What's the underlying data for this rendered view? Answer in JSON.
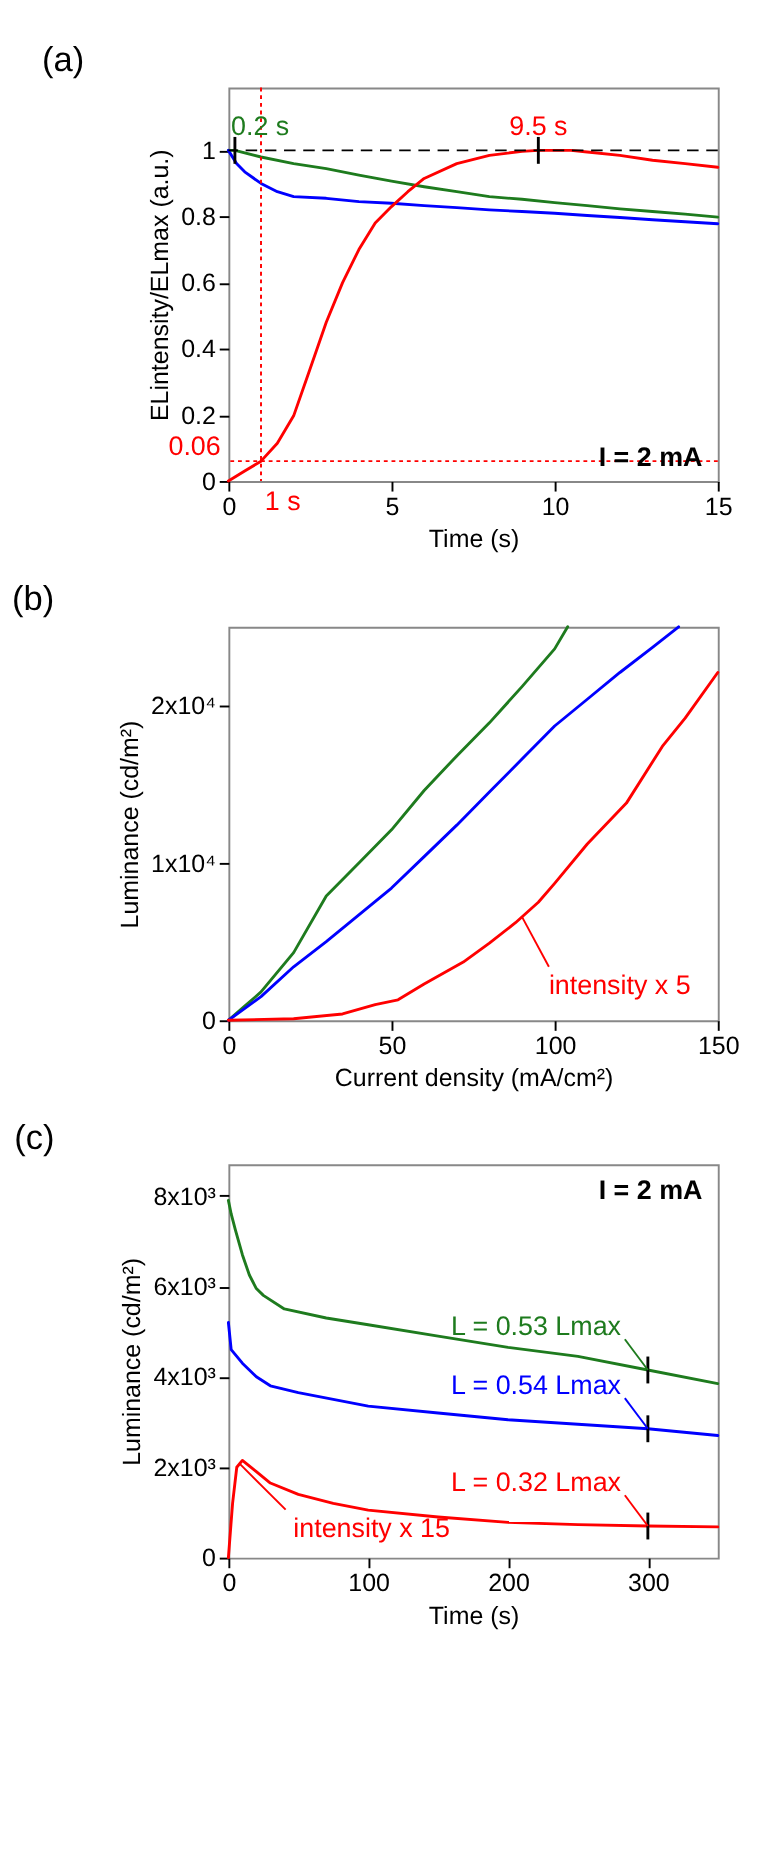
{
  "chart_data": [
    {
      "type": "line",
      "title": "(a)",
      "xlabel": "Time (s)",
      "ylabel": "ELintensity/ELmax (a.u.)",
      "xlim": [
        0,
        15
      ],
      "ylim": [
        0,
        1.19
      ],
      "xticks": [
        0,
        5,
        10,
        15
      ],
      "yticks": [
        0,
        0.2,
        0.4,
        0.6,
        0.8,
        1
      ],
      "grid": false,
      "legend": false,
      "marker": "none",
      "line_style": "solid",
      "series": [
        {
          "color": "#1e7b1e",
          "x": [
            0,
            0.2,
            1,
            2,
            3,
            4,
            5,
            6,
            7,
            8,
            9,
            10,
            11,
            12,
            13,
            14,
            15
          ],
          "values": [
            1,
            1,
            0.98,
            0.96,
            0.945,
            0.925,
            0.907,
            0.89,
            0.875,
            0.86,
            0.852,
            0.842,
            0.833,
            0.823,
            0.815,
            0.807,
            0.798
          ]
        },
        {
          "color": "#0000ff",
          "x": [
            0,
            0.25,
            0.5,
            1,
            1.5,
            2,
            3,
            4,
            5,
            6,
            7,
            8,
            9,
            10,
            11,
            12,
            13,
            14,
            15
          ],
          "values": [
            1,
            0.96,
            0.935,
            0.9,
            0.875,
            0.86,
            0.855,
            0.845,
            0.84,
            0.833,
            0.827,
            0.82,
            0.815,
            0.81,
            0.803,
            0.797,
            0.79,
            0.784,
            0.778
          ]
        },
        {
          "color": "#ff0000",
          "x": [
            0,
            0.5,
            1,
            1.5,
            2,
            2.5,
            3,
            3.5,
            4,
            4.5,
            5,
            5.5,
            6,
            7,
            8,
            9,
            9.5,
            10.5,
            11,
            12,
            13,
            14,
            15
          ],
          "values": [
            0,
            0.03,
            0.06,
            0.114,
            0.197,
            0.338,
            0.48,
            0.6,
            0.7,
            0.78,
            0.83,
            0.875,
            0.915,
            0.96,
            0.985,
            0.997,
            1,
            1,
            0.995,
            0.985,
            0.97,
            0.96,
            0.949
          ]
        }
      ],
      "ref_lines": [
        {
          "axis": "y",
          "value": 1,
          "color": "#000000",
          "line_style": "dashed"
        },
        {
          "axis": "y",
          "value": 0.06,
          "label": "0.06",
          "color": "#ff0000",
          "line_style": "dotted"
        },
        {
          "axis": "x",
          "value": 1,
          "label": "1 s",
          "color": "#ff0000",
          "line_style": "dotted"
        }
      ],
      "annotations": [
        {
          "text": "0.2 s",
          "x": 0.2,
          "y": 1
        },
        {
          "text": "9.5 s",
          "x": 9.5,
          "y": 1
        },
        "I = 2 mA"
      ]
    },
    {
      "type": "line",
      "title": "(b)",
      "xlabel": "Current density (mA/cm²)",
      "ylabel": "Luminance (cd/m²)",
      "xlim": [
        0,
        150
      ],
      "ylim": [
        0,
        25000
      ],
      "xticks": [
        0,
        50,
        100,
        150
      ],
      "yticks": [
        0,
        {
          "value": 10000,
          "label": "1x10⁴"
        },
        {
          "value": 20000,
          "label": "2x10⁴"
        }
      ],
      "grid": false,
      "legend": false,
      "marker": "none",
      "line_style": "solid",
      "series": [
        {
          "color": "#1e7b1e",
          "x": [
            0,
            5,
            10,
            20,
            30,
            40,
            50,
            60,
            70,
            80,
            90,
            100,
            104
          ],
          "values": [
            0,
            900,
            1800,
            4300,
            7900,
            10000,
            12100,
            14600,
            16800,
            18900,
            21200,
            23600,
            25000
          ]
        },
        {
          "color": "#0000ff",
          "x": [
            0,
            10,
            20,
            30,
            40,
            50,
            60,
            70,
            80,
            90,
            100,
            110,
            120,
            130,
            138
          ],
          "values": [
            0,
            1500,
            3400,
            5000,
            6700,
            8400,
            10400,
            12400,
            14500,
            16600,
            18700,
            20400,
            22100,
            23700,
            25000
          ]
        },
        {
          "color": "#ff0000",
          "x": [
            0,
            20,
            35,
            45,
            52,
            60,
            72,
            80,
            88,
            95,
            100,
            110,
            122,
            133,
            140,
            150
          ],
          "values": [
            0,
            100,
            400,
            1000,
            1300,
            2300,
            3700,
            4900,
            6200,
            7500,
            8700,
            11200,
            13800,
            17400,
            19200,
            22100
          ]
        }
      ],
      "annotations": [
        {
          "text": "intensity x 5",
          "x": 90,
          "y": 6570
        }
      ]
    },
    {
      "type": "line",
      "title": "(c)",
      "xlabel": "Time (s)",
      "ylabel": "Luminance (cd/m²)",
      "xlim": [
        0,
        350
      ],
      "ylim": [
        0,
        8700
      ],
      "xticks": [
        0,
        100,
        200,
        300
      ],
      "yticks": [
        0,
        {
          "value": 2000,
          "label": "2x10³"
        },
        {
          "value": 4000,
          "label": "4x10³"
        },
        {
          "value": 6000,
          "label": "6x10³"
        },
        {
          "value": 8000,
          "label": "8x10³"
        }
      ],
      "grid": false,
      "legend": false,
      "marker": "none",
      "line_style": "solid",
      "series": [
        {
          "color": "#1e7b1e",
          "x": [
            0,
            2,
            5,
            10,
            15,
            20,
            25,
            40,
            70,
            100,
            150,
            200,
            250,
            300,
            350
          ],
          "values": [
            7900,
            7600,
            7250,
            6700,
            6250,
            5950,
            5800,
            5500,
            5300,
            5150,
            4900,
            4650,
            4450,
            4150,
            3850
          ]
        },
        {
          "color": "#0000ff",
          "x": [
            0,
            2,
            10,
            20,
            30,
            50,
            100,
            150,
            200,
            250,
            300,
            350
          ],
          "values": [
            5200,
            4600,
            4300,
            4000,
            3800,
            3650,
            3350,
            3200,
            3050,
            2950,
            2850,
            2700
          ]
        },
        {
          "color": "#ff0000",
          "x": [
            0,
            3,
            6,
            10,
            20,
            30,
            50,
            75,
            100,
            150,
            200,
            250,
            300,
            350
          ],
          "values": [
            0,
            1200,
            2000,
            2150,
            1900,
            1650,
            1400,
            1200,
            1050,
            900,
            780,
            730,
            700,
            680
          ]
        }
      ],
      "annotations": [
        "I = 2 mA",
        {
          "text": "L = 0.53 Lmax",
          "x": 300,
          "y": 4150
        },
        {
          "text": "L = 0.54 Lmax",
          "x": 300,
          "y": 2850
        },
        {
          "text": "L = 0.32 Lmax",
          "x": 300,
          "y": 700
        },
        {
          "text": "intensity x 15",
          "x": 8,
          "y": 2080
        }
      ]
    }
  ]
}
